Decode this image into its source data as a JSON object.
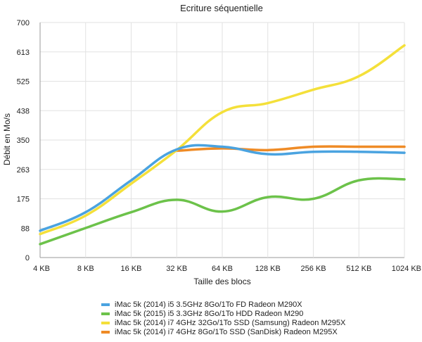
{
  "chart_data": {
    "type": "line",
    "title": "Ecriture séquentielle",
    "xlabel": "Taille des blocs",
    "ylabel": "Débit en Mo/s",
    "categories": [
      "4 KB",
      "8 KB",
      "16 KB",
      "32 KB",
      "64 KB",
      "128 KB",
      "256 KB",
      "512 KB",
      "1024 KB"
    ],
    "yticks": [
      "0",
      "88",
      "175",
      "263",
      "350",
      "438",
      "525",
      "613",
      "700"
    ],
    "ylim": [
      0,
      700
    ],
    "grid": true,
    "legend_position": "bottom",
    "series": [
      {
        "name": "iMac 5k (2014) i5 3.5GHz 8Go/1To FD Radeon M290X",
        "color": "#4aa3e0",
        "values": [
          80,
          135,
          230,
          322,
          330,
          308,
          315,
          315,
          312
        ]
      },
      {
        "name": "iMac 5k (2015) i5 3.3GHz 8Go/1To HDD Radeon M290",
        "color": "#6cc24a",
        "values": [
          40,
          88,
          135,
          172,
          137,
          180,
          175,
          230,
          233
        ]
      },
      {
        "name": "iMac 5k (2014) i7 4GHz 32Go/1To SSD (Samsung) Radeon M295X",
        "color": "#f4e03a",
        "values": [
          70,
          125,
          220,
          320,
          433,
          460,
          500,
          540,
          632
        ]
      },
      {
        "name": "iMac 5k (2014) i7 4GHz 8Go/1To SSD (SanDisk) Radeon M295X",
        "color": "#ef8b26",
        "values": [
          null,
          null,
          null,
          318,
          325,
          320,
          330,
          330,
          330
        ]
      }
    ]
  }
}
